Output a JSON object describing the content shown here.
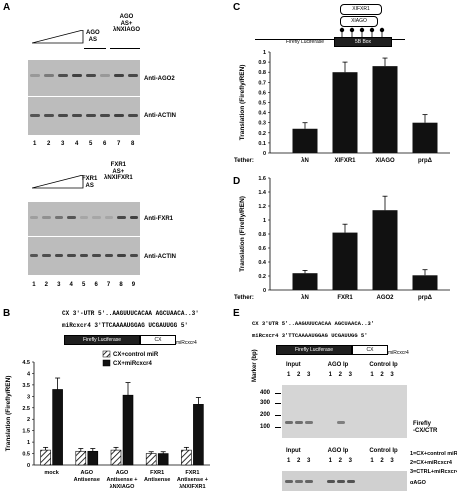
{
  "panelA": {
    "letter": "A",
    "top_headers": [
      "AGO\nAS",
      "AGO\nAS+\nλNXIAGO"
    ],
    "top_labels": [
      "Anti-AGO2",
      "Anti-ACTIN"
    ],
    "top_lanes": [
      "1",
      "2",
      "3",
      "4",
      "5",
      "6",
      "7",
      "8"
    ],
    "bottom_headers": [
      "FXR1\nAS",
      "FXR1\nAS+\nλNXIFXR1"
    ],
    "bottom_labels": [
      "Anti-FXR1",
      "Anti-ACTIN"
    ],
    "bottom_lanes": [
      "1",
      "2",
      "3",
      "4",
      "5",
      "6",
      "7",
      "8",
      "9"
    ]
  },
  "panelB": {
    "letter": "B",
    "seq_top": "CX 3'-UTR 5'..AAGUUUCACAA AGCUAACA..3'",
    "seq_bottom": "miRcxcr4   3'TTCAAAAUGGAG UCGAUUGG 5'",
    "construct_label": "Firefly Luciferase",
    "construct_cx": "CX",
    "construct_side": "miRcxcr4",
    "legend": [
      "CX+control miR",
      "CX+miRcxcr4"
    ]
  },
  "panelC": {
    "letter": "C",
    "tether_label": "Tether:",
    "construct_label": "Firefly Luciferase",
    "box_label": "5B Box",
    "proteins": [
      "XIFXR1",
      "XIAGO"
    ]
  },
  "panelD": {
    "letter": "D",
    "tether_label": "Tether:"
  },
  "panelE": {
    "letter": "E",
    "seq_top": "CX 3'UTR 5'..AAGUUUCACAA AGCUAACA..3'",
    "seq_bottom": "miRcxcr4 3'TTCAAAAUGGAG UCGAUUGG 5'",
    "construct_label": "Firefly Luciferase",
    "construct_cx": "CX",
    "construct_side": "miRcxcr4",
    "groups1": [
      "Input",
      "AGO Ip",
      "Control Ip"
    ],
    "lanes": [
      "1",
      "2",
      "3"
    ],
    "marker_label": "Marker (bp)",
    "markers": [
      "400",
      "300",
      "200",
      "100"
    ],
    "band_label": "Firefly\n-CX/CTR",
    "groups2": [
      "Input",
      "AGO Ip",
      "Control Ip"
    ],
    "key": [
      "1=CX+control miR",
      "2=CX+miRcxcr4",
      "3=CTRL+miRcxcr4"
    ],
    "bottom_label": "αAGO"
  },
  "chart_data": [
    {
      "type": "bar",
      "panel": "B",
      "title": "",
      "ylabel": "Translation (Firefly/REN)",
      "categories": [
        "mock",
        "AGO\nAntisense",
        "AGO\nAntisense +\nλNXIAGO",
        "FXR1\nAntisense",
        "FXR1\nAntisense +\nλNXIFXR1"
      ],
      "series": [
        {
          "name": "CX+control miR",
          "values": [
            0.65,
            0.6,
            0.65,
            0.5,
            0.65
          ],
          "errors": [
            0.12,
            0.12,
            0.12,
            0.08,
            0.12
          ],
          "pattern": "hatched"
        },
        {
          "name": "CX+miRcxcr4",
          "values": [
            3.3,
            0.6,
            3.05,
            0.5,
            2.65
          ],
          "errors": [
            0.5,
            0.12,
            0.55,
            0.08,
            0.3
          ],
          "pattern": "solid"
        }
      ],
      "ylim": [
        0,
        4.5
      ],
      "yticks": [
        "0",
        "0.5",
        "1",
        "1.5",
        "2",
        "2.5",
        "3",
        "3.5",
        "4",
        "4.5"
      ]
    },
    {
      "type": "bar",
      "panel": "C",
      "title": "",
      "ylabel": "Translation (Firefly/REN)",
      "xlabel": "Tether:",
      "categories": [
        "λN",
        "XIFXR1",
        "XIAGO",
        "prpΔ"
      ],
      "values": [
        0.24,
        0.8,
        0.86,
        0.3
      ],
      "errors": [
        0.06,
        0.1,
        0.08,
        0.08
      ],
      "ylim": [
        0,
        1
      ],
      "yticks": [
        "0",
        "0.1",
        "0.2",
        "0.3",
        "0.4",
        "0.5",
        "0.6",
        "0.7",
        "0.8",
        "0.9",
        "1"
      ]
    },
    {
      "type": "bar",
      "panel": "D",
      "title": "",
      "ylabel": "Translation (Firefly/REN)",
      "xlabel": "Tether:",
      "categories": [
        "λN",
        "FXR1",
        "AGO2",
        "prpΔ"
      ],
      "values": [
        0.24,
        0.82,
        1.14,
        0.21
      ],
      "errors": [
        0.04,
        0.12,
        0.2,
        0.08
      ],
      "ylim": [
        0,
        1.6
      ],
      "yticks": [
        "0",
        "0.2",
        "0.4",
        "0.6",
        "0.8",
        "1",
        "1.2",
        "1.4",
        "1.6"
      ]
    }
  ]
}
